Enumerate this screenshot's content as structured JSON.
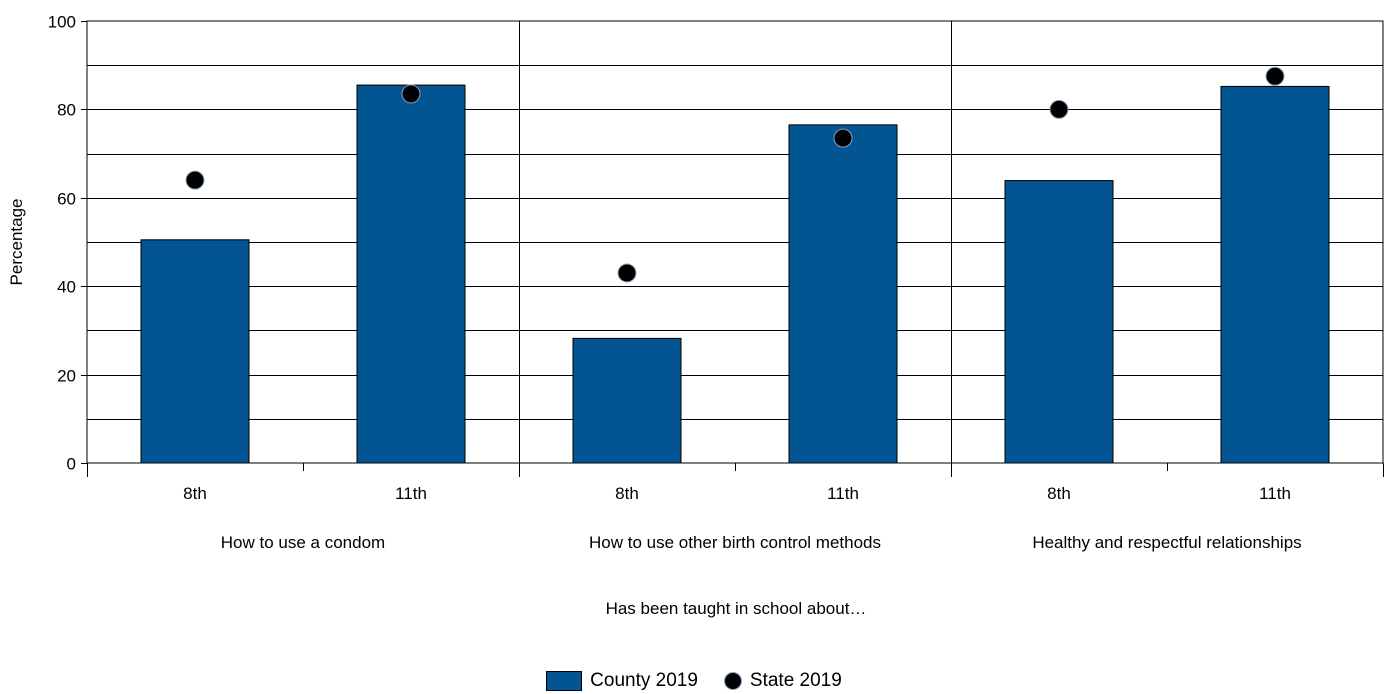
{
  "chart_data": {
    "type": "bar",
    "ylabel": "Percentage",
    "xlabel": "Has been taught in school about…",
    "ylim": [
      0,
      100
    ],
    "y_ticks": [
      "0",
      "20",
      "40",
      "60",
      "80",
      "100"
    ],
    "grid": true,
    "legend_position": "bottom-center",
    "groups": [
      {
        "label": "How to use a condom",
        "categories": [
          "8th",
          "11th"
        ]
      },
      {
        "label": "How to use other birth control methods",
        "categories": [
          "8th",
          "11th"
        ]
      },
      {
        "label": "Healthy and respectful relationships",
        "categories": [
          "8th",
          "11th"
        ]
      }
    ],
    "series": [
      {
        "name": "County 2019",
        "kind": "bar",
        "values": [
          50.5,
          85.5,
          28.2,
          76.5,
          63.9,
          85.2
        ]
      },
      {
        "name": "State 2019",
        "kind": "dot",
        "values": [
          64,
          83.5,
          43,
          73.5,
          80,
          87.5
        ]
      }
    ]
  },
  "colors": {
    "bar_fill": "#025592",
    "dot_fill": "#000000",
    "dot_stroke": "#8aa4c4"
  }
}
